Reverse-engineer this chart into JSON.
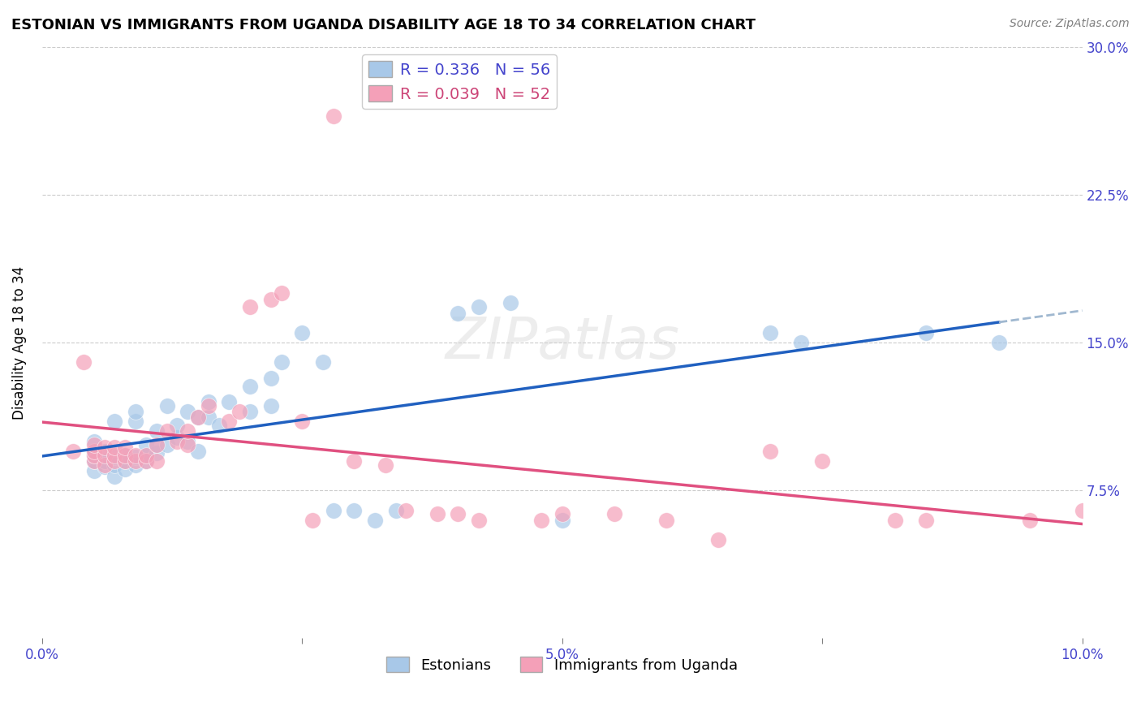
{
  "title": "ESTONIAN VS IMMIGRANTS FROM UGANDA DISABILITY AGE 18 TO 34 CORRELATION CHART",
  "source": "Source: ZipAtlas.com",
  "ylabel": "Disability Age 18 to 34",
  "xlim": [
    0.0,
    0.1
  ],
  "ylim": [
    0.0,
    0.3
  ],
  "xticks": [
    0.0,
    0.025,
    0.05,
    0.075,
    0.1
  ],
  "xtick_labels": [
    "0.0%",
    "",
    "5.0%",
    "",
    "10.0%"
  ],
  "yticks": [
    0.075,
    0.15,
    0.225,
    0.3
  ],
  "ytick_labels": [
    "7.5%",
    "15.0%",
    "22.5%",
    "30.0%"
  ],
  "background_color": "#ffffff",
  "grid_color": "#cccccc",
  "blue_color": "#a8c8e8",
  "pink_color": "#f4a0b8",
  "blue_line_color": "#2060c0",
  "pink_line_color": "#e05080",
  "dashed_line_color": "#a0b8d0",
  "title_fontsize": 13,
  "label_fontsize": 12,
  "tick_fontsize": 12,
  "legend_r1": "R = 0.336",
  "legend_n1": "N = 56",
  "legend_r2": "R = 0.039",
  "legend_n2": "N = 52",
  "legend_label1": "Estonians",
  "legend_label2": "Immigrants from Uganda",
  "blue_x": [
    0.005,
    0.005,
    0.005,
    0.005,
    0.005,
    0.006,
    0.006,
    0.006,
    0.007,
    0.007,
    0.007,
    0.007,
    0.008,
    0.008,
    0.008,
    0.009,
    0.009,
    0.009,
    0.009,
    0.01,
    0.01,
    0.01,
    0.011,
    0.011,
    0.011,
    0.012,
    0.012,
    0.013,
    0.013,
    0.014,
    0.014,
    0.015,
    0.015,
    0.016,
    0.016,
    0.017,
    0.018,
    0.02,
    0.02,
    0.022,
    0.022,
    0.023,
    0.025,
    0.027,
    0.028,
    0.03,
    0.032,
    0.034,
    0.04,
    0.042,
    0.045,
    0.05,
    0.07,
    0.073,
    0.085,
    0.092
  ],
  "blue_y": [
    0.085,
    0.09,
    0.093,
    0.095,
    0.1,
    0.087,
    0.09,
    0.095,
    0.082,
    0.088,
    0.092,
    0.11,
    0.086,
    0.09,
    0.093,
    0.088,
    0.092,
    0.11,
    0.115,
    0.09,
    0.093,
    0.098,
    0.094,
    0.098,
    0.105,
    0.098,
    0.118,
    0.102,
    0.108,
    0.1,
    0.115,
    0.095,
    0.112,
    0.112,
    0.12,
    0.108,
    0.12,
    0.115,
    0.128,
    0.118,
    0.132,
    0.14,
    0.155,
    0.14,
    0.065,
    0.065,
    0.06,
    0.065,
    0.165,
    0.168,
    0.17,
    0.06,
    0.155,
    0.15,
    0.155,
    0.15
  ],
  "pink_x": [
    0.003,
    0.004,
    0.005,
    0.005,
    0.005,
    0.005,
    0.006,
    0.006,
    0.006,
    0.007,
    0.007,
    0.007,
    0.008,
    0.008,
    0.008,
    0.009,
    0.009,
    0.01,
    0.01,
    0.011,
    0.011,
    0.012,
    0.013,
    0.014,
    0.014,
    0.015,
    0.016,
    0.018,
    0.019,
    0.02,
    0.022,
    0.023,
    0.025,
    0.026,
    0.028,
    0.03,
    0.033,
    0.035,
    0.038,
    0.04,
    0.042,
    0.048,
    0.05,
    0.055,
    0.06,
    0.065,
    0.07,
    0.075,
    0.082,
    0.085,
    0.095,
    0.1
  ],
  "pink_y": [
    0.095,
    0.14,
    0.09,
    0.093,
    0.095,
    0.098,
    0.088,
    0.093,
    0.097,
    0.09,
    0.093,
    0.097,
    0.09,
    0.093,
    0.097,
    0.09,
    0.093,
    0.09,
    0.093,
    0.09,
    0.098,
    0.105,
    0.1,
    0.098,
    0.105,
    0.112,
    0.118,
    0.11,
    0.115,
    0.168,
    0.172,
    0.175,
    0.11,
    0.06,
    0.265,
    0.09,
    0.088,
    0.065,
    0.063,
    0.063,
    0.06,
    0.06,
    0.063,
    0.063,
    0.06,
    0.05,
    0.095,
    0.09,
    0.06,
    0.06,
    0.06,
    0.065
  ]
}
